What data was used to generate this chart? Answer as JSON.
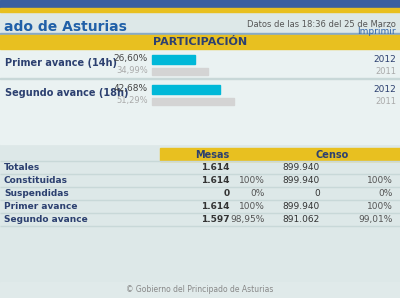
{
  "title_left": "ado de Asturias",
  "datos_text": "Datos de las 18:36 del 25 de Marzo",
  "imprimir_text": "Imprimir",
  "participacion_title": "PARTICIPACIÓN",
  "bar1_label": "Primer avance (14h)",
  "bar1_val_2012": 26.6,
  "bar1_pct_2012": "26,60%",
  "bar1_val_2011": 34.99,
  "bar1_pct_2011": "34,99%",
  "bar2_label": "Segundo avance (18h)",
  "bar2_val_2012": 42.68,
  "bar2_pct_2012": "42,68%",
  "bar2_val_2011": 51.29,
  "bar2_pct_2011": "51,29%",
  "color_2012": "#00b8d8",
  "color_2011": "#d4d4d4",
  "color_year_2012": "#2c4070",
  "color_year_2011": "#aaaaaa",
  "color_label": "#2c4070",
  "color_pct_2012": "#444444",
  "color_pct_2011": "#aaaaaa",
  "bg_main": "#dde8e8",
  "header_yellow": "#e8c020",
  "table_header_yellow": "#e8c020",
  "table_rows": [
    {
      "label": "Totales",
      "mesas": "1.614",
      "mesas_pct": "",
      "censo": "899.940",
      "censo_pct": "",
      "bold": true
    },
    {
      "label": "Constituidas",
      "mesas": "1.614",
      "mesas_pct": "100%",
      "censo": "899.940",
      "censo_pct": "100%",
      "bold": true
    },
    {
      "label": "Suspendidas",
      "mesas": "0",
      "mesas_pct": "0%",
      "censo": "0",
      "censo_pct": "0%",
      "bold": true
    },
    {
      "label": "Primer avance",
      "mesas": "1.614",
      "mesas_pct": "100%",
      "censo": "899.940",
      "censo_pct": "100%",
      "bold": true
    },
    {
      "label": "Segundo avance",
      "mesas": "1.597",
      "mesas_pct": "98,95%",
      "censo": "891.062",
      "censo_pct": "99,01%",
      "bold": true
    }
  ],
  "footer_text": "© Gobierno del Principado de Asturias",
  "top_bar_color": "#3a5fa0",
  "top_bar2_color": "#e8c020",
  "title_color": "#2060a8"
}
